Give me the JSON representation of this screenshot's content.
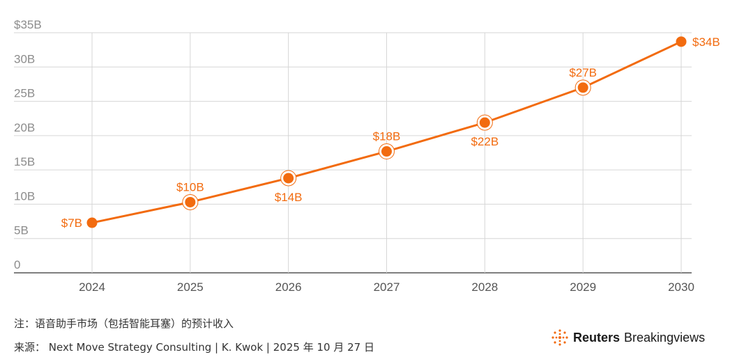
{
  "chart_data": {
    "type": "line",
    "x": [
      "2024",
      "2025",
      "2026",
      "2027",
      "2028",
      "2029",
      "2030"
    ],
    "values": [
      7.3,
      10.3,
      13.8,
      17.7,
      21.9,
      27.0,
      33.7
    ],
    "data_labels": [
      "$7B",
      "$10B",
      "$14B",
      "$18B",
      "$22B",
      "$27B",
      "$34B"
    ],
    "ylim": [
      0,
      35
    ],
    "yticks": [
      0,
      5,
      10,
      15,
      20,
      25,
      30,
      35
    ],
    "ytick_labels": [
      "0",
      "5B",
      "10B",
      "15B",
      "20B",
      "25B",
      "30B",
      "$35B"
    ],
    "grid": true,
    "color": "#f26b0f"
  },
  "footer": {
    "note": "注：语音助手市场（包括智能耳塞）的预计收入",
    "source": "来源： Next Move Strategy Consulting | K. Kwok | 2025 年 10 月 27 日"
  },
  "brand": {
    "name_bold": "Reuters",
    "name_rest": "Breakingviews",
    "icon": "reuters-dot-logo-icon"
  }
}
